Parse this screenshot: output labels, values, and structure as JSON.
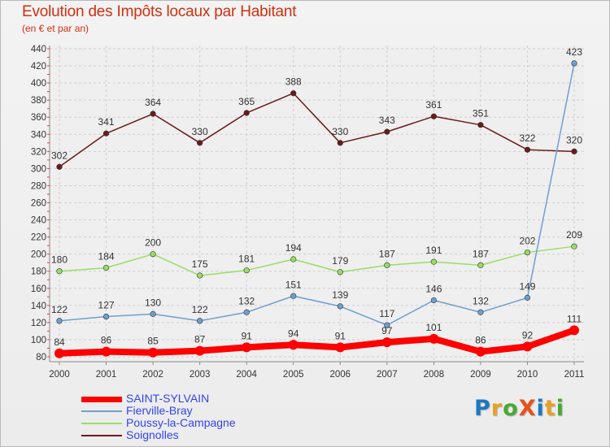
{
  "title": "Evolution des Impôts locaux par Habitant",
  "subtitle": "(en € et par an)",
  "logo": {
    "text": "ProXiti",
    "colors": [
      "#1a78c2",
      "#e8a021",
      "#4aa832",
      "#e8501a",
      "#1a78c2",
      "#e8a021",
      "#4aa832"
    ]
  },
  "chart_data": {
    "type": "line",
    "x": [
      "2000",
      "2001",
      "2002",
      "2003",
      "2004",
      "2005",
      "2006",
      "2007",
      "2008",
      "2009",
      "2010",
      "2011"
    ],
    "ylim": [
      80,
      440
    ],
    "yticks": [
      80,
      100,
      120,
      140,
      160,
      180,
      200,
      220,
      240,
      260,
      280,
      300,
      320,
      340,
      360,
      380,
      400,
      420,
      440
    ],
    "grid": true,
    "legend_position": "bottom-left",
    "series": [
      {
        "name": "Soignolles",
        "color": "#6b1a1a",
        "values": [
          302,
          341,
          364,
          330,
          365,
          388,
          330,
          343,
          361,
          351,
          322,
          320
        ]
      },
      {
        "name": "Poussy-la-Campagne",
        "color": "#99dd66",
        "values": [
          180,
          184,
          200,
          175,
          181,
          194,
          179,
          187,
          191,
          187,
          202,
          209
        ]
      },
      {
        "name": "Fierville-Bray",
        "color": "#6f9fd0",
        "values": [
          122,
          127,
          130,
          122,
          132,
          151,
          139,
          117,
          146,
          132,
          149,
          423
        ]
      },
      {
        "name": "SAINT-SYLVAIN",
        "color": "#ff0000",
        "values": [
          84,
          86,
          85,
          87,
          91,
          94,
          91,
          97,
          101,
          86,
          92,
          111
        ]
      }
    ]
  },
  "legend": [
    {
      "name": "SAINT-SYLVAIN",
      "color": "#ff0000"
    },
    {
      "name": "Fierville-Bray",
      "color": "#6f9fd0"
    },
    {
      "name": "Poussy-la-Campagne",
      "color": "#99dd66"
    },
    {
      "name": "Soignolles",
      "color": "#6b1a1a"
    }
  ]
}
